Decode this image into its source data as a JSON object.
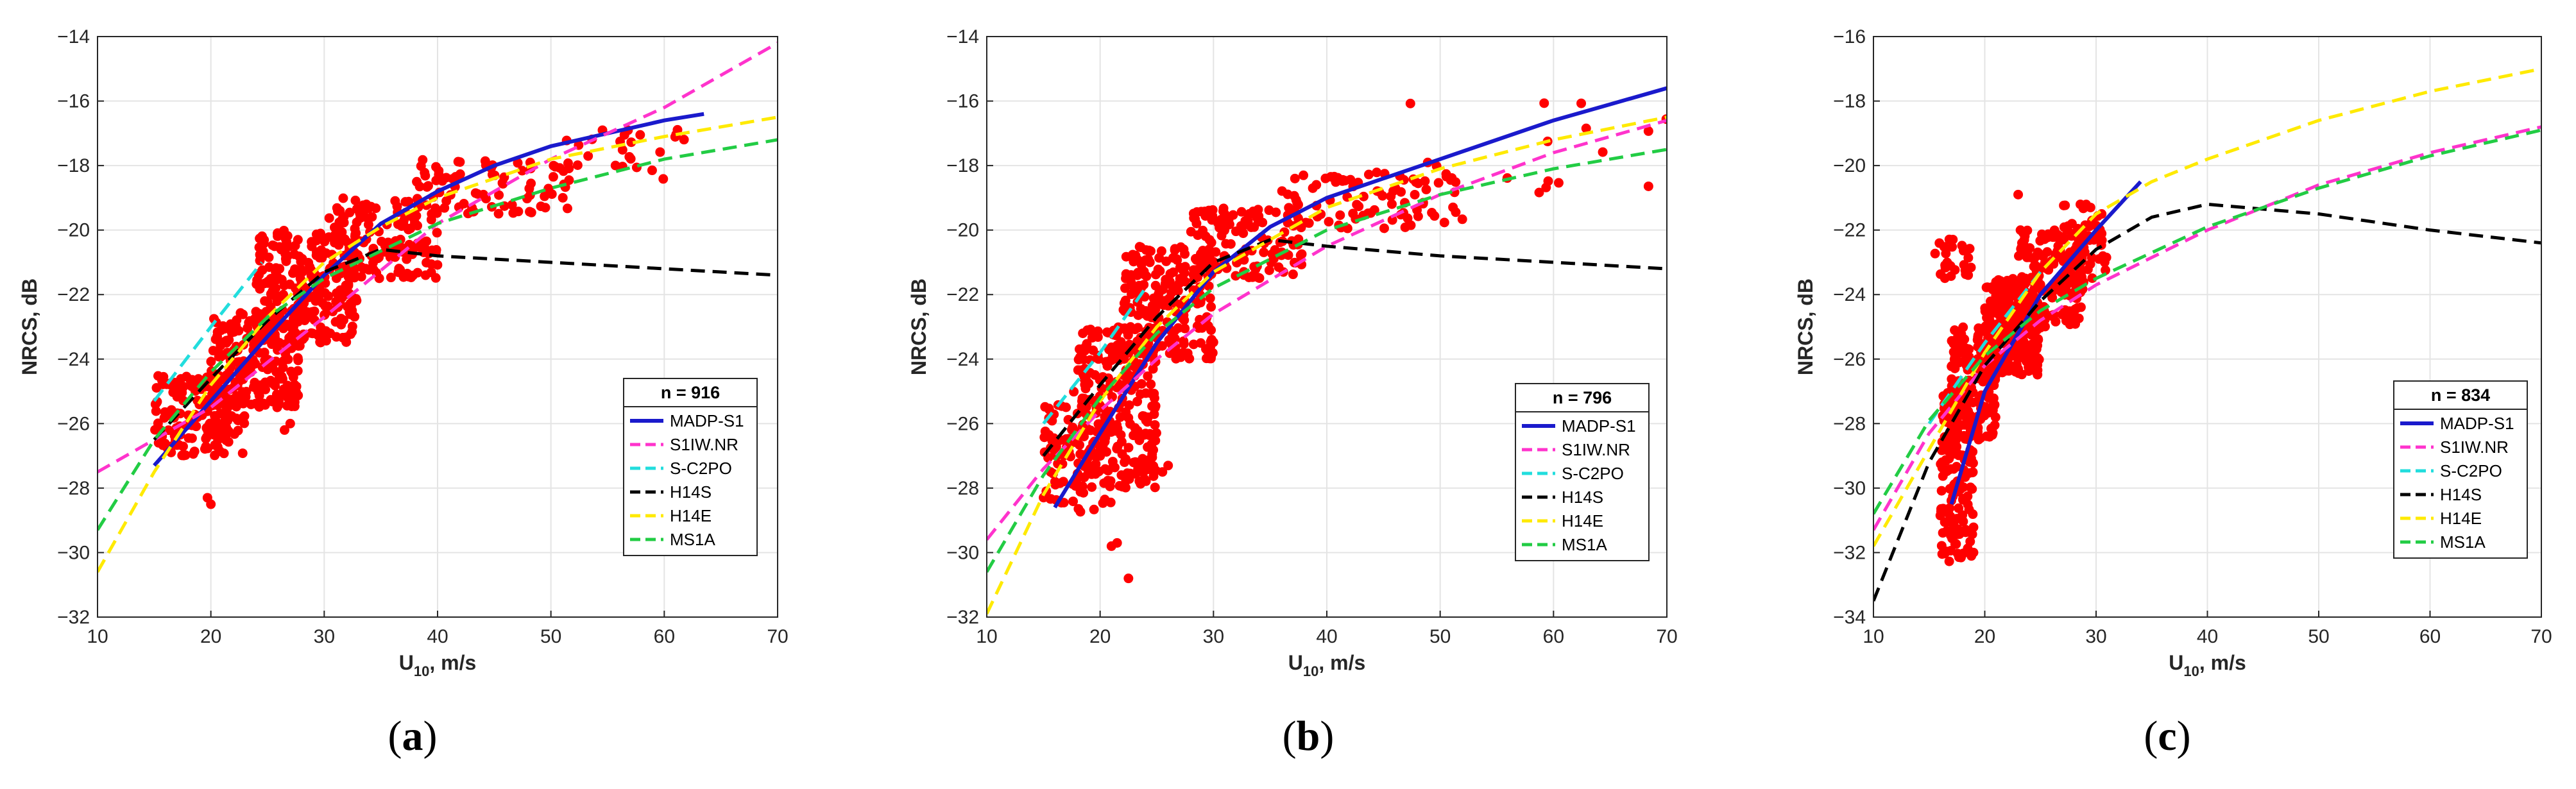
{
  "figure": {
    "captions": [
      {
        "open": "(",
        "letter": "a",
        "close": ")"
      },
      {
        "open": "(",
        "letter": "b",
        "close": ")"
      },
      {
        "open": "(",
        "letter": "c",
        "close": ")"
      }
    ]
  },
  "chart_data": [
    {
      "type": "scatter",
      "title": "",
      "xlabel": "U",
      "xlabel_sub": "10",
      "xlabel_suffix": ", m/s",
      "ylabel": "NRCS, dB",
      "xlim": [
        10,
        70
      ],
      "ylim": [
        -32,
        -14
      ],
      "xticks": [
        10,
        20,
        30,
        40,
        50,
        60,
        70
      ],
      "yticks": [
        -32,
        -30,
        -28,
        -26,
        -24,
        -22,
        -20,
        -18,
        -16,
        -14
      ],
      "grid": true,
      "legend_title": "n = 916",
      "legend_position": "lower-right",
      "scatter_color": "#ff0000",
      "scatter_count": 916,
      "scatter_clusters": [
        {
          "x_min": 15,
          "x_max": 23,
          "y_min": -27,
          "y_max": -24.5,
          "n": 180
        },
        {
          "x_min": 20,
          "x_max": 28,
          "y_min": -25.5,
          "y_max": -22.5,
          "n": 220
        },
        {
          "x_min": 24,
          "x_max": 33,
          "y_min": -23.5,
          "y_max": -20,
          "n": 260
        },
        {
          "x_min": 30,
          "x_max": 40,
          "y_min": -21.5,
          "y_max": -19,
          "n": 150
        },
        {
          "x_min": 38,
          "x_max": 52,
          "y_min": -19.5,
          "y_max": -17.8,
          "n": 80
        },
        {
          "x_min": 50,
          "x_max": 62,
          "y_min": -18.5,
          "y_max": -16.8,
          "n": 26
        }
      ],
      "scatter_extra": [
        [
          19.7,
          -28.3
        ],
        [
          20,
          -28.5
        ],
        [
          27,
          -26
        ],
        [
          26.5,
          -26.2
        ]
      ],
      "series": [
        {
          "name": "MADP-S1",
          "color": "#1a1acc",
          "dash": "solid",
          "x": [
            15,
            20,
            25,
            30,
            35,
            40,
            45,
            50,
            55,
            60,
            63.5
          ],
          "y": [
            -27.3,
            -25.3,
            -23.3,
            -21.4,
            -19.8,
            -18.8,
            -18.0,
            -17.4,
            -17.0,
            -16.6,
            -16.4
          ]
        },
        {
          "name": "S1IW.NR",
          "color": "#ff33cc",
          "dash": "dashed",
          "x": [
            10,
            20,
            30,
            40,
            50,
            60,
            70
          ],
          "y": [
            -27.5,
            -25.5,
            -22.7,
            -19.8,
            -17.8,
            -16.2,
            -14.2
          ]
        },
        {
          "name": "S-C2PO",
          "color": "#22dddd",
          "dash": "dashed",
          "x": [
            15,
            20,
            24.5
          ],
          "y": [
            -25.3,
            -23.0,
            -21.0
          ]
        },
        {
          "name": "H14S",
          "color": "#000000",
          "dash": "dashed",
          "x": [
            15,
            20,
            25,
            30,
            35,
            40,
            50,
            60,
            70
          ],
          "y": [
            -26.5,
            -24.6,
            -22.8,
            -21.3,
            -20.6,
            -20.8,
            -21.0,
            -21.2,
            -21.4
          ]
        },
        {
          "name": "H14E",
          "color": "#ffea00",
          "dash": "dashed",
          "x": [
            10,
            15,
            20,
            25,
            30,
            35,
            40,
            50,
            60,
            70
          ],
          "y": [
            -30.6,
            -27.5,
            -24.8,
            -22.7,
            -21.0,
            -19.9,
            -19.0,
            -17.8,
            -17.1,
            -16.5
          ]
        },
        {
          "name": "MS1A",
          "color": "#22cc44",
          "dash": "dashed",
          "x": [
            10,
            15,
            20,
            25,
            30,
            40,
            50,
            60,
            70
          ],
          "y": [
            -29.3,
            -26.5,
            -24.4,
            -22.7,
            -21.5,
            -19.8,
            -18.7,
            -17.8,
            -17.2
          ]
        }
      ]
    },
    {
      "type": "scatter",
      "title": "",
      "xlabel": "U",
      "xlabel_sub": "10",
      "xlabel_suffix": ", m/s",
      "ylabel": "NRCS, dB",
      "xlim": [
        10,
        70
      ],
      "ylim": [
        -32,
        -14
      ],
      "xticks": [
        10,
        20,
        30,
        40,
        50,
        60,
        70
      ],
      "yticks": [
        -32,
        -30,
        -28,
        -26,
        -24,
        -22,
        -20,
        -18,
        -16,
        -14
      ],
      "grid": true,
      "legend_title": "n = 796",
      "legend_position": "lower-right",
      "scatter_color": "#ff0000",
      "scatter_count": 796,
      "scatter_clusters": [
        {
          "x_min": 15,
          "x_max": 21,
          "y_min": -28.8,
          "y_max": -25,
          "n": 100
        },
        {
          "x_min": 18,
          "x_max": 25,
          "y_min": -28,
          "y_max": -23,
          "n": 260
        },
        {
          "x_min": 22,
          "x_max": 30,
          "y_min": -24,
          "y_max": -20.5,
          "n": 200
        },
        {
          "x_min": 28,
          "x_max": 38,
          "y_min": -21.5,
          "y_max": -19.3,
          "n": 130
        },
        {
          "x_min": 36,
          "x_max": 52,
          "y_min": -20,
          "y_max": -18.2,
          "n": 90
        },
        {
          "x_min": 45,
          "x_max": 70,
          "y_min": -19,
          "y_max": -16,
          "n": 16
        }
      ],
      "scatter_extra": [
        [
          22.5,
          -30.8
        ],
        [
          21.5,
          -29.7
        ],
        [
          21,
          -29.8
        ],
        [
          25.5,
          -27.5
        ],
        [
          26,
          -27.3
        ]
      ],
      "series": [
        {
          "name": "MADP-S1",
          "color": "#1a1acc",
          "dash": "solid",
          "x": [
            16,
            20,
            25,
            30,
            35,
            40,
            45,
            50,
            55,
            60,
            65,
            70
          ],
          "y": [
            -28.6,
            -26.3,
            -23.5,
            -21.3,
            -19.9,
            -19.0,
            -18.4,
            -17.8,
            -17.2,
            -16.6,
            -16.1,
            -15.6
          ]
        },
        {
          "name": "S1IW.NR",
          "color": "#ff33cc",
          "dash": "dashed",
          "x": [
            10,
            15,
            20,
            25,
            30,
            40,
            50,
            60,
            70
          ],
          "y": [
            -29.6,
            -27.4,
            -25.6,
            -24.0,
            -22.6,
            -20.5,
            -18.9,
            -17.6,
            -16.6
          ]
        },
        {
          "name": "S-C2PO",
          "color": "#22dddd",
          "dash": "dashed",
          "x": [
            15,
            20,
            24
          ],
          "y": [
            -26.0,
            -23.8,
            -21.8
          ]
        },
        {
          "name": "H14S",
          "color": "#000000",
          "dash": "dashed",
          "x": [
            15,
            20,
            25,
            30,
            35,
            40,
            50,
            60,
            70
          ],
          "y": [
            -27.0,
            -24.8,
            -22.7,
            -21.0,
            -20.3,
            -20.5,
            -20.8,
            -21.0,
            -21.2
          ]
        },
        {
          "name": "H14E",
          "color": "#ffea00",
          "dash": "dashed",
          "x": [
            10,
            15,
            20,
            25,
            30,
            40,
            50,
            60,
            70
          ],
          "y": [
            -31.9,
            -28.2,
            -25.3,
            -23.0,
            -21.3,
            -19.3,
            -18.1,
            -17.2,
            -16.5
          ]
        },
        {
          "name": "MS1A",
          "color": "#22cc44",
          "dash": "dashed",
          "x": [
            10,
            15,
            20,
            25,
            30,
            40,
            50,
            60,
            70
          ],
          "y": [
            -30.6,
            -27.6,
            -25.2,
            -23.2,
            -21.8,
            -20.0,
            -18.9,
            -18.1,
            -17.5
          ]
        }
      ]
    },
    {
      "type": "scatter",
      "title": "",
      "xlabel": "U",
      "xlabel_sub": "10",
      "xlabel_suffix": ", m/s",
      "ylabel": "NRCS, dB",
      "xlim": [
        10,
        70
      ],
      "ylim": [
        -34,
        -16
      ],
      "xticks": [
        10,
        20,
        30,
        40,
        50,
        60,
        70
      ],
      "yticks": [
        -34,
        -32,
        -30,
        -28,
        -26,
        -24,
        -22,
        -20,
        -18,
        -16
      ],
      "grid": true,
      "legend_title": "n = 834",
      "legend_position": "lower-right",
      "scatter_color": "#ff0000",
      "scatter_count": 834,
      "scatter_clusters": [
        {
          "x_min": 16,
          "x_max": 19,
          "y_min": -32.3,
          "y_max": -27,
          "n": 160
        },
        {
          "x_min": 17,
          "x_max": 21,
          "y_min": -28.5,
          "y_max": -25,
          "n": 170
        },
        {
          "x_min": 20,
          "x_max": 25,
          "y_min": -26.5,
          "y_max": -23.5,
          "n": 250
        },
        {
          "x_min": 23,
          "x_max": 29,
          "y_min": -25,
          "y_max": -22,
          "n": 180
        },
        {
          "x_min": 27,
          "x_max": 31,
          "y_min": -23.5,
          "y_max": -21.2,
          "n": 50
        },
        {
          "x_min": 15.5,
          "x_max": 19,
          "y_min": -23.5,
          "y_max": -22.2,
          "n": 24
        }
      ],
      "scatter_extra": [
        [
          23,
          -20.9
        ],
        [
          29.5,
          -21.3
        ],
        [
          30.5,
          -21.5
        ]
      ],
      "series": [
        {
          "name": "MADP-S1",
          "color": "#1a1acc",
          "dash": "solid",
          "x": [
            17,
            20,
            25,
            30,
            34
          ],
          "y": [
            -30.5,
            -27.0,
            -24.0,
            -22.0,
            -20.5
          ]
        },
        {
          "name": "S1IW.NR",
          "color": "#ff33cc",
          "dash": "dashed",
          "x": [
            10,
            15,
            20,
            25,
            30,
            40,
            50,
            60,
            70
          ],
          "y": [
            -31.3,
            -28.3,
            -26.2,
            -24.8,
            -23.7,
            -22.0,
            -20.6,
            -19.6,
            -18.8
          ]
        },
        {
          "name": "S-C2PO",
          "color": "#22dddd",
          "dash": "dashed",
          "x": [
            15,
            20,
            25
          ],
          "y": [
            -28.0,
            -25.5,
            -23.3
          ]
        },
        {
          "name": "H14S",
          "color": "#000000",
          "dash": "dashed",
          "x": [
            10,
            15,
            20,
            25,
            30,
            35,
            40,
            50,
            60,
            70
          ],
          "y": [
            -33.5,
            -29.2,
            -26.2,
            -24.2,
            -22.6,
            -21.6,
            -21.2,
            -21.5,
            -22.0,
            -22.4
          ]
        },
        {
          "name": "H14E",
          "color": "#ffea00",
          "dash": "dashed",
          "x": [
            10,
            15,
            20,
            25,
            30,
            35,
            40,
            50,
            60,
            70
          ],
          "y": [
            -31.8,
            -28.8,
            -25.8,
            -23.3,
            -21.5,
            -20.5,
            -19.8,
            -18.6,
            -17.7,
            -17.0
          ]
        },
        {
          "name": "MS1A",
          "color": "#22cc44",
          "dash": "dashed",
          "x": [
            10,
            15,
            20,
            25,
            30,
            40,
            50,
            60,
            70
          ],
          "y": [
            -30.8,
            -27.9,
            -25.9,
            -24.5,
            -23.5,
            -21.9,
            -20.7,
            -19.7,
            -18.9
          ]
        }
      ]
    }
  ]
}
